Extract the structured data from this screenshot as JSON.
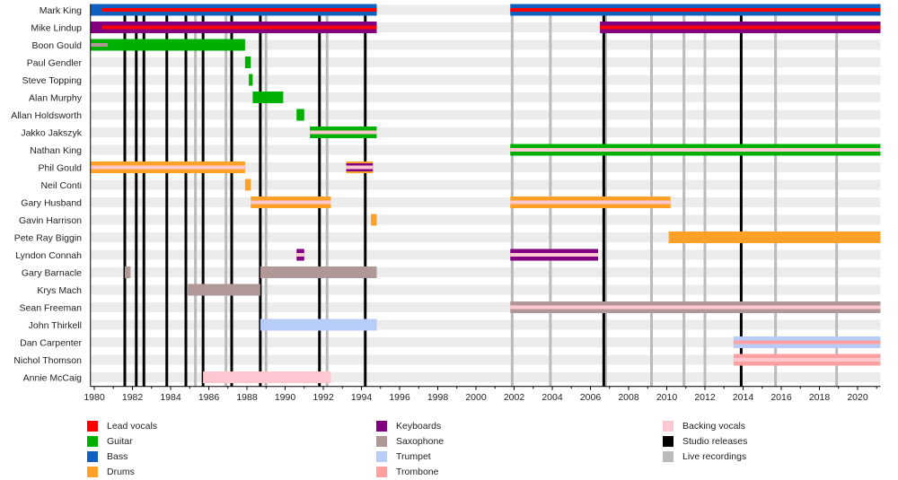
{
  "chart_data": {
    "type": "timeline",
    "title": "",
    "xlabel": "",
    "ylabel": "",
    "xlim": [
      1979.8,
      2021.2
    ],
    "x_ticks": [
      "1980",
      "1982",
      "1984",
      "1986",
      "1988",
      "1990",
      "1992",
      "1994",
      "1996",
      "1998",
      "2000",
      "2002",
      "2004",
      "2006",
      "2008",
      "2010",
      "2012",
      "2014",
      "2016",
      "2018",
      "2020"
    ],
    "colors": {
      "Lead vocals": "#ff0000",
      "Guitar": "#00b000",
      "Bass": "#1060c0",
      "Drums": "#ffa028",
      "Keyboards": "#800080",
      "Saxophone": "#b09898",
      "Trumpet": "#b8ccf8",
      "Trombone": "#ffa0a0",
      "Backing vocals": "#ffc8d0",
      "Studio releases": "#000000",
      "Live recordings": "#bbbbbb"
    },
    "members": [
      {
        "name": "Mark King",
        "bars": [
          {
            "start": 1979.8,
            "end": 1994.8,
            "main": "Bass",
            "inner": "Lead vocals",
            "inner_start": 1980.4
          },
          {
            "start": 2001.8,
            "end": 2021.2,
            "main": "Bass",
            "inner": "Lead vocals"
          }
        ]
      },
      {
        "name": "Mike Lindup",
        "bars": [
          {
            "start": 1979.8,
            "end": 1994.8,
            "main": "Keyboards",
            "inner": "Lead vocals",
            "inner_start": 1980.4
          },
          {
            "start": 2006.5,
            "end": 2021.2,
            "main": "Keyboards",
            "inner": "Lead vocals"
          }
        ]
      },
      {
        "name": "Boon Gould",
        "bars": [
          {
            "start": 1979.8,
            "end": 1987.9,
            "main": "Guitar",
            "inner": "Saxophone",
            "inner_start": 1979.8,
            "inner_end": 1980.7
          }
        ]
      },
      {
        "name": "Paul Gendler",
        "bars": [
          {
            "start": 1987.9,
            "end": 1988.2,
            "main": "Guitar"
          }
        ]
      },
      {
        "name": "Steve Topping",
        "bars": [
          {
            "start": 1988.1,
            "end": 1988.3,
            "main": "Guitar"
          }
        ]
      },
      {
        "name": "Alan Murphy",
        "bars": [
          {
            "start": 1988.3,
            "end": 1989.9,
            "main": "Guitar"
          }
        ]
      },
      {
        "name": "Allan Holdsworth",
        "bars": [
          {
            "start": 1990.6,
            "end": 1991.0,
            "main": "Guitar"
          }
        ]
      },
      {
        "name": "Jakko Jakszyk",
        "bars": [
          {
            "start": 1991.3,
            "end": 1994.8,
            "main": "Guitar",
            "stripe": "Backing vocals"
          }
        ]
      },
      {
        "name": "Nathan King",
        "bars": [
          {
            "start": 2001.8,
            "end": 2021.2,
            "main": "Guitar",
            "stripe": "Backing vocals"
          }
        ]
      },
      {
        "name": "Phil Gould",
        "bars": [
          {
            "start": 1979.8,
            "end": 1987.9,
            "main": "Drums",
            "stripe": "Backing vocals"
          },
          {
            "start": 1993.2,
            "end": 1994.6,
            "main": "Drums",
            "stripe2": "Keyboards",
            "stripe": "Backing vocals"
          }
        ]
      },
      {
        "name": "Neil Conti",
        "bars": [
          {
            "start": 1987.9,
            "end": 1988.2,
            "main": "Drums"
          }
        ]
      },
      {
        "name": "Gary Husband",
        "bars": [
          {
            "start": 1988.2,
            "end": 1992.4,
            "main": "Drums",
            "stripe": "Backing vocals"
          },
          {
            "start": 2001.8,
            "end": 2010.2,
            "main": "Drums",
            "stripe": "Backing vocals"
          }
        ]
      },
      {
        "name": "Gavin Harrison",
        "bars": [
          {
            "start": 1994.5,
            "end": 1994.8,
            "main": "Drums"
          }
        ]
      },
      {
        "name": "Pete Ray Biggin",
        "bars": [
          {
            "start": 2010.1,
            "end": 2021.2,
            "main": "Drums"
          }
        ]
      },
      {
        "name": "Lyndon Connah",
        "bars": [
          {
            "start": 1990.6,
            "end": 1991.0,
            "main": "Keyboards",
            "stripe": "Backing vocals"
          },
          {
            "start": 2001.8,
            "end": 2006.4,
            "main": "Keyboards",
            "stripe": "Backing vocals"
          }
        ]
      },
      {
        "name": "Gary Barnacle",
        "bars": [
          {
            "start": 1981.6,
            "end": 1981.9,
            "main": "Saxophone"
          },
          {
            "start": 1988.7,
            "end": 1994.8,
            "main": "Saxophone"
          }
        ]
      },
      {
        "name": "Krys Mach",
        "bars": [
          {
            "start": 1984.9,
            "end": 1988.7,
            "main": "Saxophone"
          }
        ]
      },
      {
        "name": "Sean Freeman",
        "bars": [
          {
            "start": 2001.8,
            "end": 2021.2,
            "main": "Saxophone",
            "stripe": "Backing vocals"
          }
        ]
      },
      {
        "name": "John Thirkell",
        "bars": [
          {
            "start": 1988.7,
            "end": 1994.8,
            "main": "Trumpet"
          }
        ]
      },
      {
        "name": "Dan Carpenter",
        "bars": [
          {
            "start": 2013.5,
            "end": 2021.2,
            "main": "Trumpet",
            "stripe": "Trombone"
          }
        ]
      },
      {
        "name": "Nichol Thomson",
        "bars": [
          {
            "start": 2013.5,
            "end": 2021.2,
            "main": "Trombone",
            "stripe": "Backing vocals"
          }
        ]
      },
      {
        "name": "Annie McCaig",
        "bars": [
          {
            "start": 1985.7,
            "end": 1992.4,
            "main": "Backing vocals"
          }
        ]
      }
    ],
    "studio_releases": [
      1981.6,
      1982.2,
      1982.6,
      1983.8,
      1984.8,
      1985.7,
      1987.2,
      1988.7,
      1991.8,
      1994.2,
      2006.7,
      2013.9
    ],
    "live_recordings": [
      1985.3,
      1986.9,
      1989.0,
      1992.2,
      2001.9,
      2003.9,
      2006.8,
      2009.2,
      2010.9,
      2012.0,
      2015.7,
      2018.9
    ],
    "legend_placement": "bottom",
    "legend": [
      [
        "Lead vocals",
        "Guitar",
        "Bass",
        "Drums"
      ],
      [
        "Keyboards",
        "Saxophone",
        "Trumpet",
        "Trombone"
      ],
      [
        "Backing vocals",
        "Studio releases",
        "Live recordings"
      ]
    ]
  }
}
